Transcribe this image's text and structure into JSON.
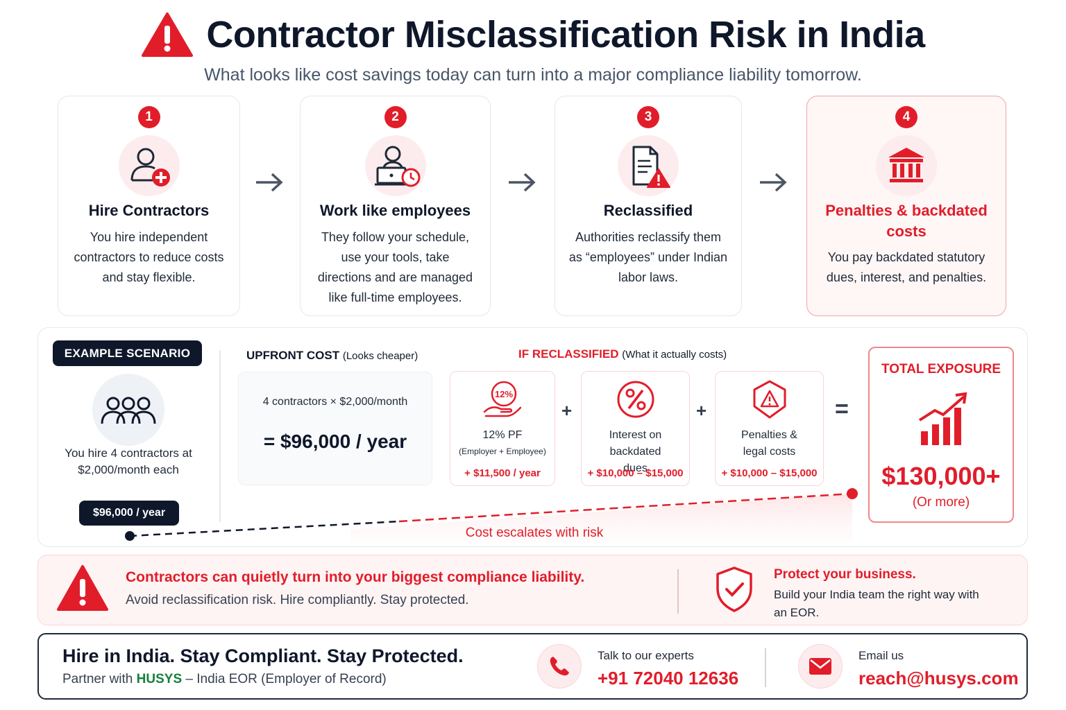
{
  "header": {
    "title": "Contractor Misclassification Risk in India",
    "subtitle": "What looks like cost savings today can turn into a major compliance liability tomorrow."
  },
  "steps": [
    {
      "num": "1",
      "title": "Hire Contractors",
      "text": "You hire independent contractors to reduce costs and stay flexible.",
      "icon": "add-user-icon"
    },
    {
      "num": "2",
      "title": "Work like employees",
      "text": "They follow your schedule, use your tools, take directions and are managed like full-time employees.",
      "icon": "laptop-user-clock-icon"
    },
    {
      "num": "3",
      "title": "Reclassified",
      "text": "Authorities reclassify them as “employees” under Indian labor laws.",
      "icon": "document-warning-icon"
    },
    {
      "num": "4",
      "title": "Penalties & backdated costs",
      "text": "You pay backdated statutory dues, interest, and penalties.",
      "icon": "bank-icon"
    }
  ],
  "scenario": {
    "badge": "EXAMPLE SCENARIO",
    "desc": "You hire 4 contractors at $2,000/month each",
    "base_pill": "$96,000 / year",
    "upfront_label": "UPFRONT COST",
    "upfront_note": "(Looks cheaper)",
    "upfront_calc": "4 contractors × $2,000/month",
    "upfront_total": "= $96,000 / year",
    "reclass_label": "IF RECLASSIFIED",
    "reclass_note": "(What it actually costs)",
    "items": [
      {
        "icon_text": "12%",
        "name": "12% PF",
        "sub": "(Employer + Employee)",
        "amount": "+ $11,500 / year"
      },
      {
        "name": "Interest on backdated dues",
        "amount": "+ $10,000 – $15,000"
      },
      {
        "name": "Penalties & legal costs",
        "amount": "+ $10,000 – $15,000"
      }
    ],
    "plus": "+",
    "equals": "=",
    "total_label": "TOTAL EXPOSURE",
    "total_value": "$130,000+",
    "total_note": "(Or more)",
    "escalate": "Cost escalates with risk"
  },
  "warning": {
    "headline": "Contractors can quietly turn into your biggest compliance liability.",
    "sub": "Avoid reclassification risk. Hire compliantly. Stay protected.",
    "protect_title": "Protect your business.",
    "protect_text": "Build your India team the right way with an EOR."
  },
  "footer": {
    "headline": "Hire in India. Stay Compliant. Stay Protected.",
    "partner_prefix": "Partner with",
    "brand": "HUSYS",
    "partner_suffix": "– India EOR (Employer of Record)",
    "talk_label": "Talk to our experts",
    "phone": "+91 72040 12636",
    "email_label": "Email us",
    "email": "reach@husys.com"
  },
  "colors": {
    "accent": "#e11d2a",
    "dark": "#0f172a",
    "brand": "#15803d"
  }
}
